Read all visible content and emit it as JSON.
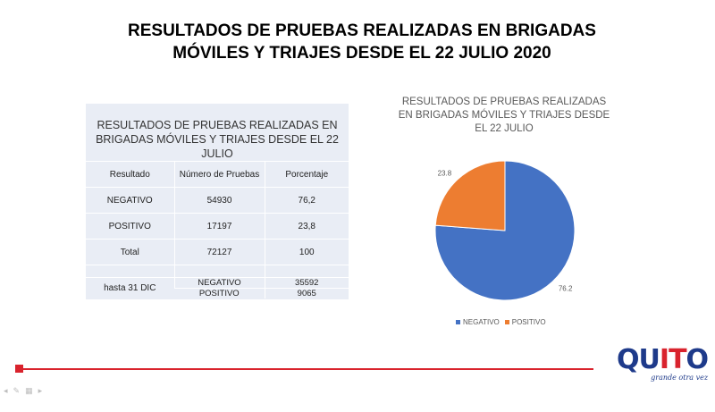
{
  "slide": {
    "title_line1": "RESULTADOS DE PRUEBAS REALIZADAS EN BRIGADAS",
    "title_line2": "MÓVILES Y TRIAJES DESDE EL 22 JULIO 2020"
  },
  "table": {
    "heading_line1": "RESULTADOS DE PRUEBAS REALIZADAS EN",
    "heading_line2": "BRIGADAS MÓVILES Y TRIAJES DESDE EL 22 JULIO",
    "columns": [
      "Resultado",
      "Número de Pruebas",
      "Porcentaje"
    ],
    "rows": [
      [
        "NEGATIVO",
        "54930",
        "76,2"
      ],
      [
        "POSITIVO",
        "17197",
        "23,8"
      ],
      [
        "Total",
        "72127",
        "100"
      ]
    ],
    "extra": {
      "label": "hasta 31 DIC",
      "rows": [
        [
          "NEGATIVO",
          "35592"
        ],
        [
          "POSITIVO",
          "9065"
        ]
      ]
    }
  },
  "chart_data": {
    "type": "pie",
    "title": "RESULTADOS DE PRUEBAS REALIZADAS EN BRIGADAS MÓVILES Y TRIAJES DESDE EL 22 JULIO",
    "categories": [
      "NEGATIVO",
      "POSITIVO"
    ],
    "values": [
      76.2,
      23.8
    ],
    "data_labels": [
      "76.2",
      "23.8"
    ],
    "colors": [
      "#4472c4",
      "#ed7d31"
    ],
    "legend_position": "bottom"
  },
  "logo": {
    "letters": [
      "Q",
      "U",
      "I",
      "T",
      "O"
    ],
    "colors": [
      "#1e3a8a",
      "#1e3a8a",
      "#d9232d",
      "#d9232d",
      "#1e3a8a"
    ],
    "tagline": "grande otra vez"
  },
  "nav": {
    "controls": [
      "back-icon",
      "pen-icon",
      "slides-icon",
      "forward-icon"
    ]
  }
}
